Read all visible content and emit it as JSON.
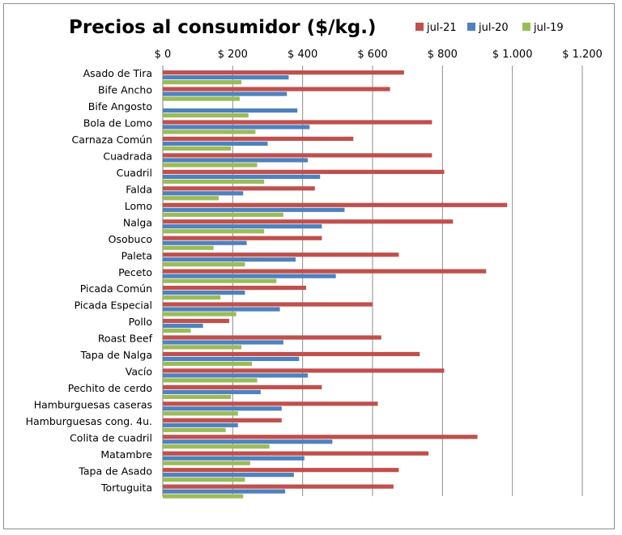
{
  "chart_data": {
    "type": "bar",
    "orientation": "horizontal",
    "title": "Precios al consumidor ($/kg.)",
    "x_axis_position": "top",
    "xlim": [
      0,
      1200
    ],
    "x_ticks": [
      0,
      200,
      400,
      600,
      800,
      1000,
      1200
    ],
    "x_tick_labels": [
      "$ 0",
      "$ 200",
      "$ 400",
      "$ 600",
      "$ 800",
      "$ 1.000",
      "$ 1.200"
    ],
    "grid": true,
    "legend_position": "top-right",
    "categories": [
      "Asado de Tira",
      "Bife Ancho",
      "Bife Angosto",
      "Bola de Lomo",
      "Carnaza Común",
      "Cuadrada",
      "Cuadril",
      "Falda",
      "Lomo",
      "Nalga",
      "Osobuco",
      "Paleta",
      "Peceto",
      "Picada Común",
      "Picada Especial",
      "Pollo",
      "Roast Beef",
      "Tapa de Nalga",
      "Vacío",
      "Pechito de cerdo",
      "Hamburguesas caseras",
      "Hamburguesas cong. 4u.",
      "Colita de cuadril",
      "Matambre",
      "Tapa de Asado",
      "Tortuguita"
    ],
    "series": [
      {
        "name": "jul-21",
        "color": "#c0504d",
        "values": [
          690,
          650,
          null,
          770,
          545,
          770,
          805,
          435,
          985,
          830,
          455,
          675,
          925,
          410,
          600,
          190,
          625,
          735,
          805,
          455,
          615,
          340,
          900,
          760,
          675,
          660
        ]
      },
      {
        "name": "jul-20",
        "color": "#4f81bd",
        "values": [
          360,
          355,
          385,
          420,
          300,
          415,
          450,
          230,
          520,
          455,
          240,
          380,
          495,
          235,
          335,
          115,
          345,
          390,
          415,
          280,
          340,
          215,
          485,
          405,
          375,
          350
        ]
      },
      {
        "name": "jul-19",
        "color": "#9bbb59",
        "values": [
          225,
          220,
          245,
          265,
          195,
          270,
          290,
          160,
          345,
          290,
          145,
          235,
          325,
          165,
          210,
          80,
          225,
          255,
          270,
          195,
          215,
          180,
          305,
          250,
          235,
          230
        ]
      }
    ]
  }
}
